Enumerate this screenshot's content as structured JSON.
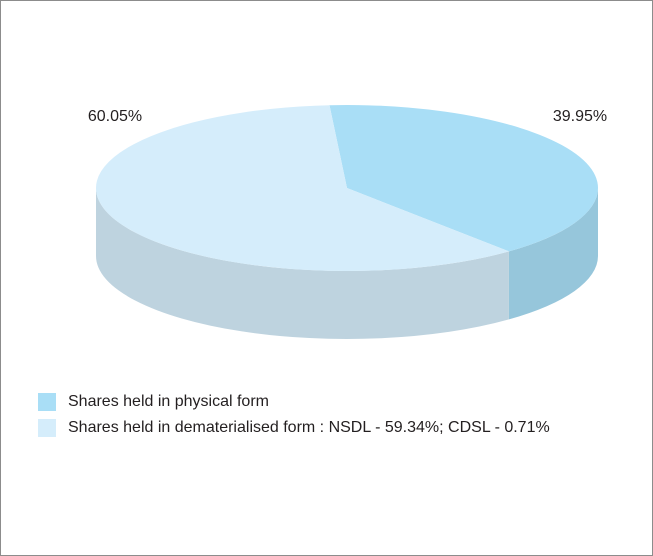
{
  "chart_data": {
    "type": "pie3d",
    "categories": [
      "Shares held in physical form",
      "Shares held in dematerialised form : NSDL - 59.34%; CDSL - 0.71%"
    ],
    "values": [
      39.95,
      60.05
    ],
    "value_labels": [
      "39.95%",
      "60.05%"
    ],
    "colors": [
      "#a9def6",
      "#d5edfb"
    ],
    "legend": "bottom-left"
  }
}
